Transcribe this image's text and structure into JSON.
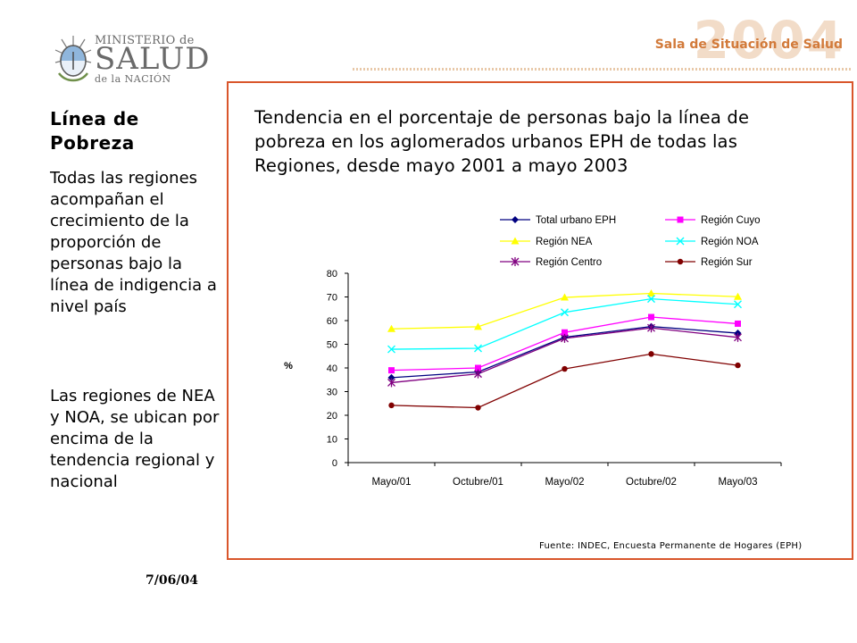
{
  "logo": {
    "line1": "MINISTERIO de",
    "line2": "SALUD",
    "line3": "de la NACIÓN"
  },
  "header": {
    "sala": "Sala de Situación de Salud",
    "year": "2004"
  },
  "left": {
    "title": "Línea de Pobreza",
    "paragraph1": "Todas las regiones acompañan el crecimiento de la proporción de personas bajo la línea de indigencia a nivel país",
    "paragraph2": "Las regiones de NEA y NOA, se ubican por encima de la tendencia regional y nacional",
    "date": "7/06/04"
  },
  "chart_title": "Tendencia en el porcentaje de personas bajo la línea de pobreza en los aglomerados urbanos EPH de todas las Regiones, desde mayo 2001 a mayo 2003",
  "source": "Fuente: INDEC, Encuesta Permanente de Hogares (EPH)",
  "chart_data": {
    "type": "line",
    "categories": [
      "Mayo/01",
      "Octubre/01",
      "Mayo/02",
      "Octubre/02",
      "Mayo/03"
    ],
    "ylabel": "%",
    "ylim": [
      0,
      80
    ],
    "yticks": [
      0,
      10,
      20,
      30,
      40,
      50,
      60,
      70,
      80
    ],
    "legend": "top",
    "grid": false,
    "series": [
      {
        "name": "Total urbano EPH",
        "color": "#000080",
        "marker": "diamond",
        "values": [
          35.9,
          38.3,
          53.0,
          57.5,
          54.7
        ]
      },
      {
        "name": "Región Cuyo",
        "color": "#ff00ff",
        "marker": "square",
        "values": [
          39.0,
          40.0,
          55.0,
          61.5,
          58.7
        ]
      },
      {
        "name": "Región NEA",
        "color": "#ffff00",
        "marker": "triangle",
        "values": [
          56.5,
          57.4,
          69.8,
          71.5,
          70.1
        ]
      },
      {
        "name": "Región NOA",
        "color": "#00ffff",
        "marker": "x",
        "values": [
          47.9,
          48.3,
          63.5,
          69.2,
          66.9
        ]
      },
      {
        "name": "Región Centro",
        "color": "#800080",
        "marker": "star",
        "values": [
          33.8,
          37.5,
          52.5,
          56.9,
          52.9
        ]
      },
      {
        "name": "Región Sur",
        "color": "#800000",
        "marker": "circle",
        "values": [
          24.2,
          23.2,
          39.6,
          45.9,
          41.1
        ]
      }
    ]
  }
}
